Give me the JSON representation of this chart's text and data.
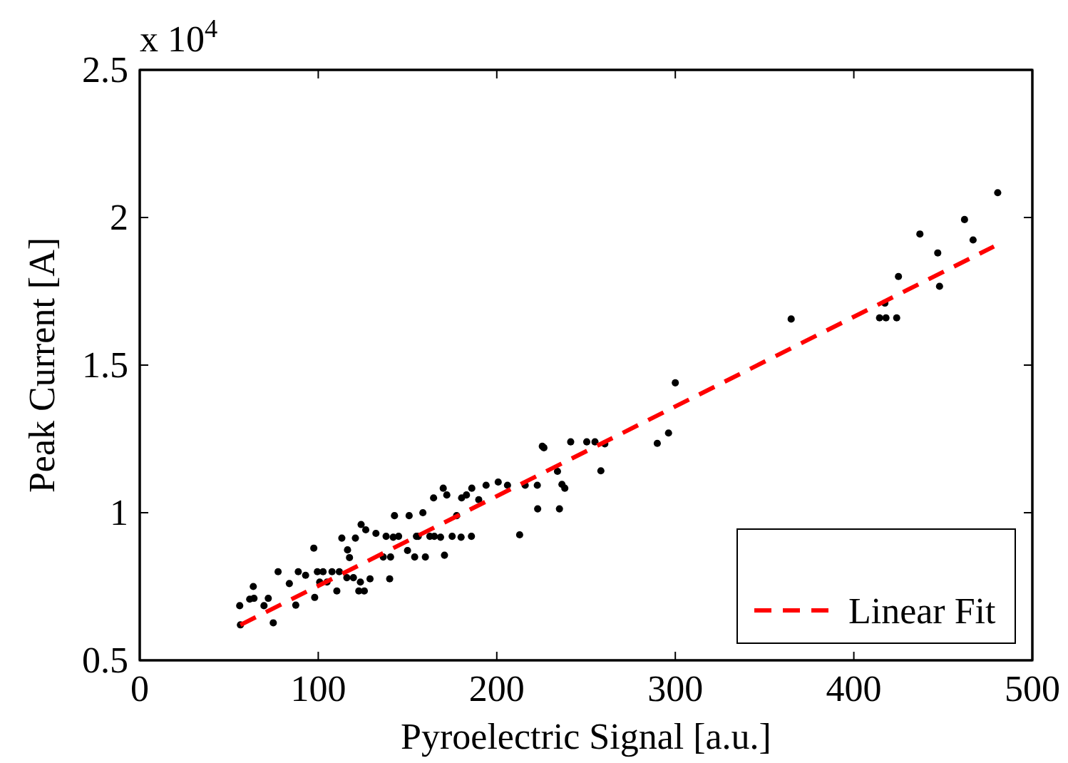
{
  "chart_data": {
    "type": "scatter",
    "xlabel": "Pyroelectric Signal [a.u.]",
    "ylabel": "Peak Current [A]",
    "xlim": [
      0,
      500
    ],
    "xticks": [
      0,
      100,
      200,
      300,
      400,
      500
    ],
    "ylim": [
      0.5,
      2.5
    ],
    "yticks": [
      0.5,
      1,
      1.5,
      2,
      2.5
    ],
    "annotations": [
      "x 10$^{4}$"
    ],
    "legend": "bottom right",
    "grid": false,
    "series": [
      {
        "marker": "circle",
        "color": "#000000",
        "x": [
          56.4,
          56,
          63.6,
          61.6,
          64,
          69.6,
          72,
          74.8,
          77.5,
          83.8,
          87.4,
          88.8,
          92.9,
          97.5,
          98,
          99.5,
          100.8,
          102.7,
          104.9,
          107.7,
          110.4,
          111.8,
          113.2,
          116.4,
          117.5,
          120.8,
          116,
          119.7,
          123.6,
          122.7,
          125.8,
          124,
          126.6,
          129,
          132.3,
          136.4,
          140,
          140.5,
          142.7,
          138,
          142,
          145,
          150.9,
          150,
          154,
          155,
          160,
          156,
          162.5,
          165,
          168.5,
          170.7,
          158.6,
          164.6,
          170,
          172,
          175,
          177.5,
          180,
          185.8,
          180.3,
          183,
          186,
          189.9,
          194,
          200.8,
          206,
          212.8,
          215.9,
          222.7,
          222.9,
          225.5,
          226.4,
          235.1,
          234,
          236.5,
          238.1,
          241.4,
          250.4,
          255,
          258.3,
          260.5,
          289.9,
          296.2,
          300,
          364.9,
          414.4,
          418,
          417.4,
          424,
          425,
          437,
          447,
          448,
          462,
          466.8,
          480.6
        ],
        "values": [
          0.62,
          0.685,
          0.75,
          0.707,
          0.71,
          0.685,
          0.71,
          0.627,
          0.8,
          0.76,
          0.687,
          0.8,
          0.788,
          0.88,
          0.713,
          0.8,
          0.765,
          0.8,
          0.765,
          0.8,
          0.735,
          0.8,
          0.914,
          0.874,
          0.848,
          0.914,
          0.78,
          0.78,
          0.765,
          0.735,
          0.735,
          0.96,
          0.942,
          0.776,
          0.93,
          0.85,
          0.776,
          0.85,
          0.99,
          0.92,
          0.917,
          0.92,
          0.99,
          0.872,
          0.85,
          0.92,
          0.85,
          0.92,
          0.92,
          0.92,
          0.917,
          0.856,
          1.0,
          1.05,
          1.083,
          1.06,
          0.92,
          0.99,
          0.917,
          0.92,
          1.05,
          1.06,
          1.083,
          1.044,
          1.093,
          1.104,
          1.093,
          0.925,
          1.093,
          1.093,
          1.013,
          1.225,
          1.22,
          1.013,
          1.14,
          1.096,
          1.083,
          1.24,
          1.24,
          1.24,
          1.142,
          1.233,
          1.235,
          1.27,
          1.44,
          1.656,
          1.66,
          1.66,
          1.71,
          1.66,
          1.8,
          1.944,
          1.88,
          1.767,
          1.993,
          1.924,
          2.084
        ]
      },
      {
        "type": "line",
        "name": "Linear Fit",
        "color": "#ff0000",
        "line_style": "dashed",
        "marker": "none",
        "x": [
          56.4,
          478.5
        ],
        "values": [
          0.62,
          1.902
        ]
      }
    ]
  }
}
